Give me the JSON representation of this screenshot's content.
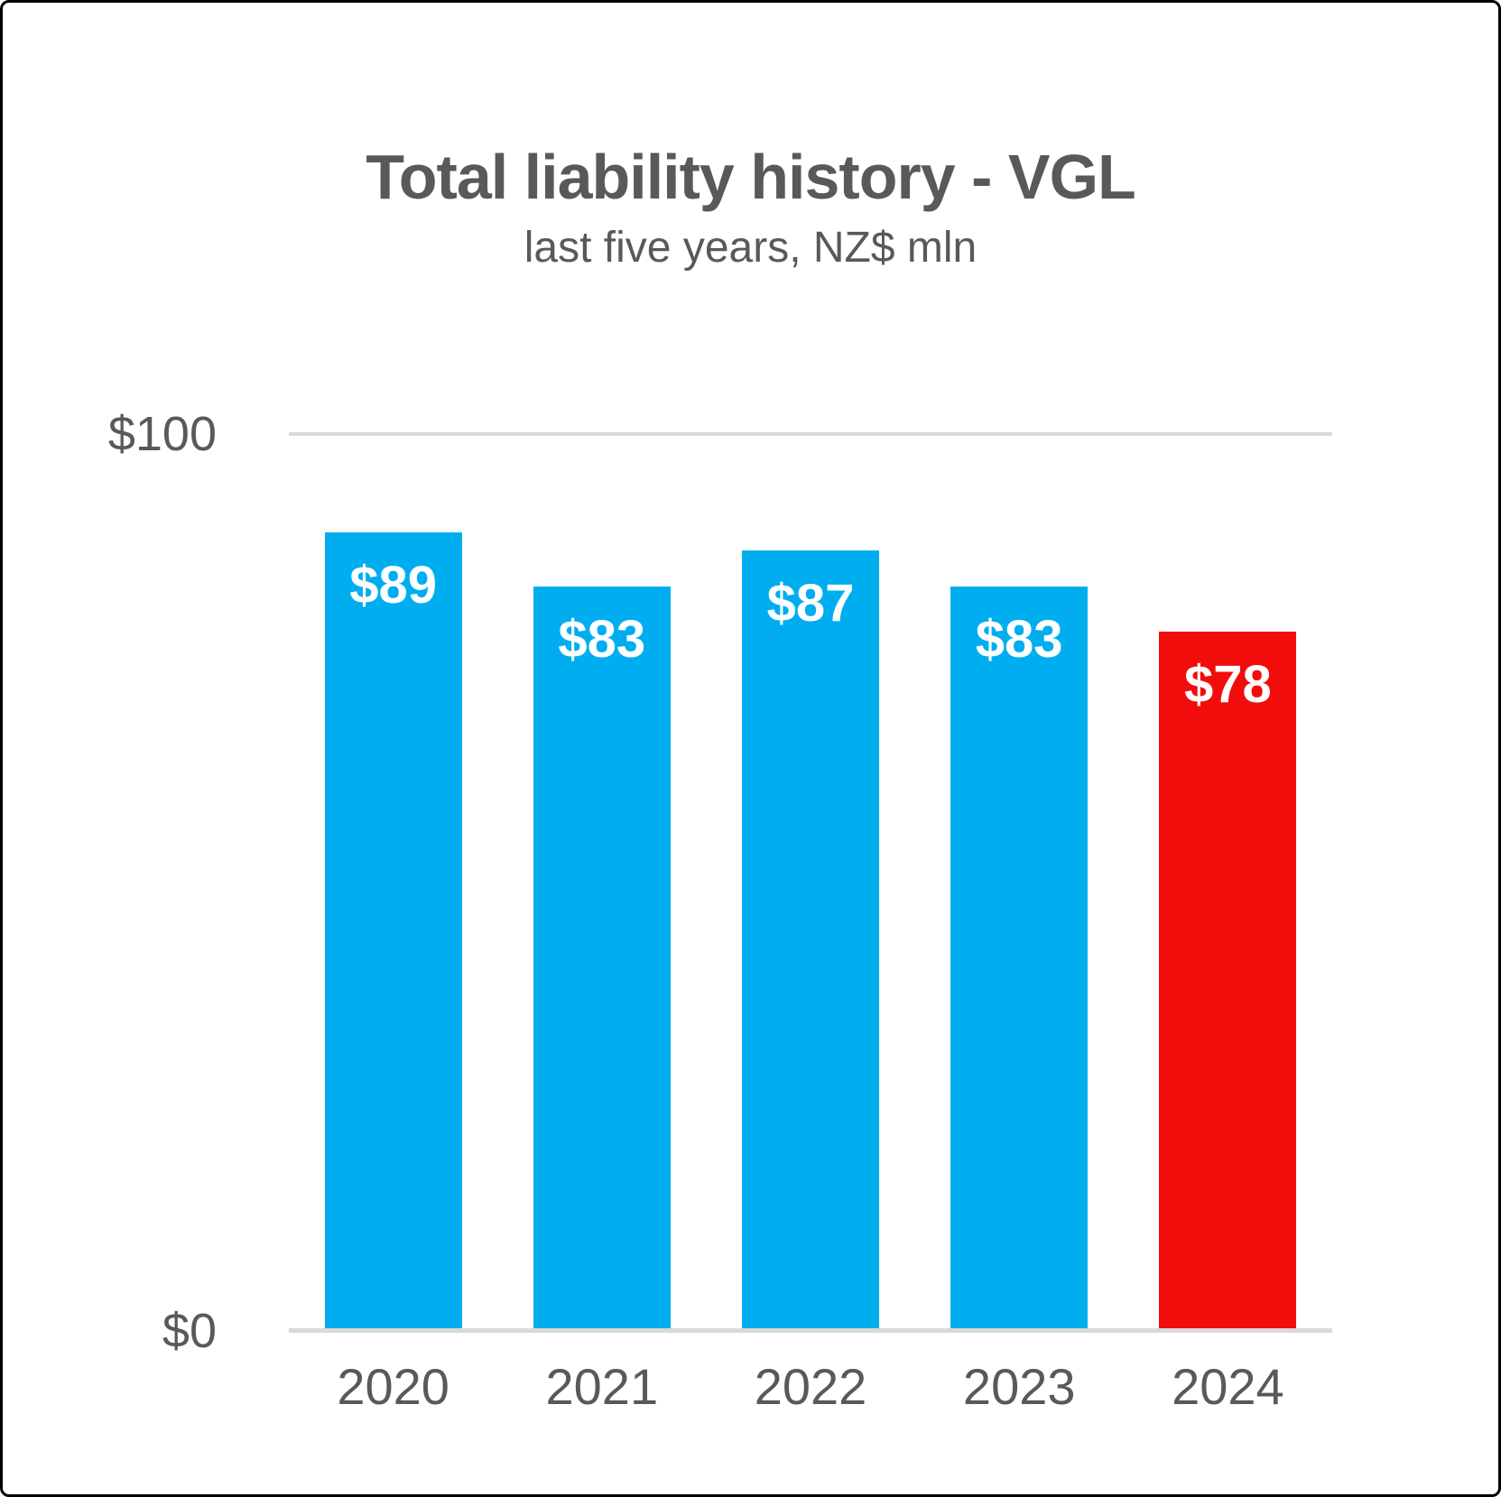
{
  "chart_data": {
    "type": "bar",
    "title": "Total liability history - VGL",
    "subtitle": "last five years, NZ$ mln",
    "categories": [
      "2020",
      "2021",
      "2022",
      "2023",
      "2024"
    ],
    "values": [
      89,
      83,
      87,
      83,
      78
    ],
    "bar_labels": [
      "$89",
      "$83",
      "$87",
      "$83",
      "$78"
    ],
    "bar_colors": [
      "#00AEEF",
      "#00AEEF",
      "#00AEEF",
      "#00AEEF",
      "#F20D0D"
    ],
    "default_bar_color": "#00AEEF",
    "highlight_bar_color": "#F20D0D",
    "value_label_color": "#FFFFFF",
    "xlabel": "",
    "ylabel": "",
    "ylim": [
      0,
      100
    ],
    "y_ticks": [
      {
        "value": 100,
        "label": "$100"
      },
      {
        "value": 0,
        "label": "$0"
      }
    ],
    "gridline_color": "#D9D9D9",
    "grid": "horizontal, ticks only at 0 and 100",
    "legend_position": "none",
    "title_color": "#58595B",
    "axis_text_color": "#595959"
  }
}
